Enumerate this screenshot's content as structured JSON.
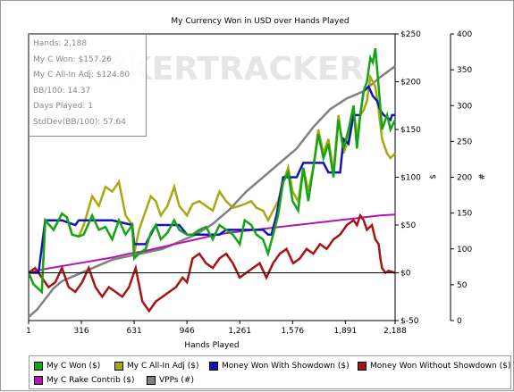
{
  "colors": {
    "my_c_won": "#14a514",
    "all_in_adj": "#a8a812",
    "showdown": "#1414b4",
    "non_showdown": "#a81414",
    "rake": "#b414b4",
    "vpps": "#808080",
    "watermark": "#e6e6e6"
  },
  "watermark_text": "POKERTRACKER",
  "stats": [
    "Hands: 2,188",
    "My C Won: $157.26",
    "My C All-In Adj: $124.80",
    "BB/100: 14.37",
    "Days Played: 1",
    "StdDev(BB/100): 57.64"
  ],
  "legend": {
    "my_c_won": "My C Won ($)",
    "all_in_adj": "My C All-In Adj ($)",
    "showdown": "Money Won With Showdown ($)",
    "non_showdown": "Money Won Without Showdown ($)",
    "rake": "My C Rake Contrib ($)",
    "vpps": "VPPs (#)"
  },
  "chart_data": {
    "type": "line",
    "title": "My Currency Won in USD over Hands Played",
    "xlabel": "Hands Played",
    "ylabel_left": "$",
    "ylabel_right": "#",
    "xlim": [
      1,
      2188
    ],
    "ylim_left": [
      -50,
      250
    ],
    "ylim_right": [
      0,
      400
    ],
    "x_ticks": [
      1,
      316,
      631,
      946,
      1261,
      1576,
      1891,
      2188
    ],
    "x_tick_labels": [
      "1",
      "316",
      "631",
      "946",
      "1,261",
      "1,576",
      "1,891",
      "2,188"
    ],
    "y_left_ticks": [
      -50,
      0,
      50,
      100,
      150,
      200,
      250
    ],
    "y_left_tick_labels": [
      "$-50",
      "$0",
      "$50",
      "$100",
      "$150",
      "$200",
      "$250"
    ],
    "y_right_ticks": [
      0,
      50,
      100,
      150,
      200,
      250,
      300,
      350,
      400
    ],
    "y_right_tick_labels": [
      "0",
      "50",
      "100",
      "150",
      "200",
      "250",
      "300",
      "350",
      "400"
    ],
    "grid": false,
    "legend_position": "bottom",
    "series": [
      {
        "name": "My C Won ($)",
        "key": "my_c_won",
        "axis": "left",
        "points": [
          [
            1,
            0
          ],
          [
            30,
            -12
          ],
          [
            80,
            -20
          ],
          [
            100,
            55
          ],
          [
            150,
            45
          ],
          [
            200,
            62
          ],
          [
            230,
            58
          ],
          [
            260,
            40
          ],
          [
            300,
            38
          ],
          [
            330,
            40
          ],
          [
            380,
            60
          ],
          [
            420,
            45
          ],
          [
            460,
            48
          ],
          [
            500,
            35
          ],
          [
            540,
            55
          ],
          [
            580,
            40
          ],
          [
            620,
            50
          ],
          [
            631,
            15
          ],
          [
            660,
            20
          ],
          [
            700,
            25
          ],
          [
            730,
            42
          ],
          [
            760,
            50
          ],
          [
            790,
            35
          ],
          [
            830,
            42
          ],
          [
            870,
            55
          ],
          [
            900,
            45
          ],
          [
            946,
            40
          ],
          [
            980,
            40
          ],
          [
            1020,
            45
          ],
          [
            1060,
            48
          ],
          [
            1100,
            35
          ],
          [
            1140,
            50
          ],
          [
            1180,
            45
          ],
          [
            1220,
            40
          ],
          [
            1261,
            30
          ],
          [
            1290,
            55
          ],
          [
            1330,
            50
          ],
          [
            1360,
            40
          ],
          [
            1400,
            35
          ],
          [
            1430,
            20
          ],
          [
            1460,
            40
          ],
          [
            1490,
            60
          ],
          [
            1520,
            95
          ],
          [
            1550,
            105
          ],
          [
            1576,
            75
          ],
          [
            1610,
            65
          ],
          [
            1640,
            110
          ],
          [
            1670,
            75
          ],
          [
            1700,
            110
          ],
          [
            1730,
            145
          ],
          [
            1760,
            120
          ],
          [
            1790,
            135
          ],
          [
            1820,
            100
          ],
          [
            1850,
            160
          ],
          [
            1880,
            130
          ],
          [
            1910,
            150
          ],
          [
            1940,
            175
          ],
          [
            1960,
            130
          ],
          [
            1980,
            165
          ],
          [
            2000,
            190
          ],
          [
            2020,
            200
          ],
          [
            2040,
            225
          ],
          [
            2055,
            220
          ],
          [
            2070,
            235
          ],
          [
            2090,
            195
          ],
          [
            2110,
            150
          ],
          [
            2140,
            165
          ],
          [
            2160,
            150
          ],
          [
            2188,
            160
          ]
        ]
      },
      {
        "name": "My C All-In Adj ($)",
        "key": "all_in_adj",
        "axis": "left",
        "points": [
          [
            1,
            0
          ],
          [
            30,
            -12
          ],
          [
            80,
            -20
          ],
          [
            100,
            55
          ],
          [
            150,
            45
          ],
          [
            200,
            62
          ],
          [
            230,
            58
          ],
          [
            260,
            40
          ],
          [
            300,
            38
          ],
          [
            330,
            50
          ],
          [
            380,
            80
          ],
          [
            420,
            70
          ],
          [
            460,
            90
          ],
          [
            500,
            85
          ],
          [
            540,
            95
          ],
          [
            580,
            60
          ],
          [
            620,
            50
          ],
          [
            631,
            20
          ],
          [
            660,
            45
          ],
          [
            700,
            65
          ],
          [
            730,
            80
          ],
          [
            760,
            75
          ],
          [
            790,
            60
          ],
          [
            830,
            70
          ],
          [
            870,
            90
          ],
          [
            900,
            70
          ],
          [
            946,
            60
          ],
          [
            980,
            72
          ],
          [
            1020,
            75
          ],
          [
            1060,
            70
          ],
          [
            1100,
            65
          ],
          [
            1140,
            85
          ],
          [
            1180,
            75
          ],
          [
            1220,
            68
          ],
          [
            1261,
            70
          ],
          [
            1290,
            72
          ],
          [
            1330,
            75
          ],
          [
            1360,
            68
          ],
          [
            1400,
            65
          ],
          [
            1430,
            55
          ],
          [
            1460,
            65
          ],
          [
            1490,
            75
          ],
          [
            1520,
            95
          ],
          [
            1550,
            110
          ],
          [
            1576,
            85
          ],
          [
            1610,
            75
          ],
          [
            1640,
            110
          ],
          [
            1670,
            85
          ],
          [
            1700,
            110
          ],
          [
            1730,
            150
          ],
          [
            1760,
            125
          ],
          [
            1790,
            140
          ],
          [
            1820,
            105
          ],
          [
            1850,
            165
          ],
          [
            1880,
            125
          ],
          [
            1910,
            140
          ],
          [
            1940,
            175
          ],
          [
            1960,
            140
          ],
          [
            1980,
            165
          ],
          [
            2000,
            170
          ],
          [
            2020,
            180
          ],
          [
            2040,
            205
          ],
          [
            2055,
            200
          ],
          [
            2070,
            195
          ],
          [
            2090,
            170
          ],
          [
            2110,
            140
          ],
          [
            2140,
            125
          ],
          [
            2160,
            120
          ],
          [
            2188,
            125
          ]
        ]
      },
      {
        "name": "Money Won With Showdown ($)",
        "key": "showdown",
        "axis": "left",
        "points": [
          [
            1,
            0
          ],
          [
            60,
            0
          ],
          [
            100,
            55
          ],
          [
            200,
            55
          ],
          [
            280,
            50
          ],
          [
            300,
            55
          ],
          [
            500,
            55
          ],
          [
            620,
            50
          ],
          [
            631,
            30
          ],
          [
            700,
            30
          ],
          [
            760,
            50
          ],
          [
            900,
            50
          ],
          [
            946,
            40
          ],
          [
            1140,
            40
          ],
          [
            1180,
            45
          ],
          [
            1400,
            45
          ],
          [
            1430,
            40
          ],
          [
            1450,
            40
          ],
          [
            1480,
            60
          ],
          [
            1520,
            100
          ],
          [
            1600,
            100
          ],
          [
            1640,
            115
          ],
          [
            1760,
            115
          ],
          [
            1790,
            105
          ],
          [
            1860,
            105
          ],
          [
            1880,
            140
          ],
          [
            1910,
            135
          ],
          [
            1940,
            165
          ],
          [
            1980,
            165
          ],
          [
            2000,
            190
          ],
          [
            2030,
            195
          ],
          [
            2055,
            185
          ],
          [
            2080,
            180
          ],
          [
            2100,
            170
          ],
          [
            2120,
            165
          ],
          [
            2160,
            160
          ],
          [
            2170,
            165
          ],
          [
            2188,
            165
          ]
        ]
      },
      {
        "name": "Money Won Without Showdown ($)",
        "key": "non_showdown",
        "axis": "left",
        "points": [
          [
            1,
            0
          ],
          [
            40,
            5
          ],
          [
            80,
            -5
          ],
          [
            120,
            -15
          ],
          [
            160,
            -10
          ],
          [
            200,
            5
          ],
          [
            240,
            -15
          ],
          [
            280,
            -20
          ],
          [
            320,
            -10
          ],
          [
            360,
            5
          ],
          [
            400,
            -15
          ],
          [
            440,
            -25
          ],
          [
            480,
            -15
          ],
          [
            520,
            -20
          ],
          [
            560,
            -25
          ],
          [
            600,
            -15
          ],
          [
            640,
            5
          ],
          [
            680,
            -30
          ],
          [
            720,
            -40
          ],
          [
            760,
            -30
          ],
          [
            800,
            -25
          ],
          [
            840,
            -20
          ],
          [
            880,
            -15
          ],
          [
            920,
            -5
          ],
          [
            946,
            -10
          ],
          [
            980,
            15
          ],
          [
            1020,
            20
          ],
          [
            1060,
            10
          ],
          [
            1100,
            5
          ],
          [
            1140,
            15
          ],
          [
            1180,
            20
          ],
          [
            1220,
            10
          ],
          [
            1261,
            -5
          ],
          [
            1300,
            0
          ],
          [
            1340,
            5
          ],
          [
            1380,
            10
          ],
          [
            1420,
            -5
          ],
          [
            1460,
            10
          ],
          [
            1500,
            20
          ],
          [
            1540,
            25
          ],
          [
            1580,
            10
          ],
          [
            1620,
            15
          ],
          [
            1660,
            25
          ],
          [
            1700,
            20
          ],
          [
            1740,
            30
          ],
          [
            1780,
            25
          ],
          [
            1820,
            35
          ],
          [
            1860,
            40
          ],
          [
            1900,
            50
          ],
          [
            1940,
            55
          ],
          [
            1960,
            50
          ],
          [
            1980,
            60
          ],
          [
            2000,
            55
          ],
          [
            2020,
            45
          ],
          [
            2050,
            50
          ],
          [
            2070,
            35
          ],
          [
            2090,
            30
          ],
          [
            2100,
            15
          ],
          [
            2110,
            5
          ],
          [
            2130,
            0
          ],
          [
            2150,
            2
          ],
          [
            2188,
            0
          ]
        ]
      },
      {
        "name": "My C Rake Contrib ($)",
        "key": "rake",
        "axis": "left",
        "points": [
          [
            1,
            0
          ],
          [
            100,
            4
          ],
          [
            200,
            7
          ],
          [
            300,
            10
          ],
          [
            400,
            13
          ],
          [
            500,
            16
          ],
          [
            600,
            20
          ],
          [
            700,
            23
          ],
          [
            800,
            27
          ],
          [
            900,
            31
          ],
          [
            1000,
            35
          ],
          [
            1100,
            39
          ],
          [
            1200,
            42
          ],
          [
            1300,
            44
          ],
          [
            1400,
            46
          ],
          [
            1500,
            48
          ],
          [
            1600,
            50
          ],
          [
            1700,
            52
          ],
          [
            1800,
            54
          ],
          [
            1900,
            56
          ],
          [
            2000,
            58
          ],
          [
            2100,
            60
          ],
          [
            2188,
            61
          ]
        ]
      },
      {
        "name": "VPPs (#)",
        "key": "vpps",
        "axis": "right",
        "points": [
          [
            1,
            5
          ],
          [
            50,
            15
          ],
          [
            100,
            30
          ],
          [
            150,
            45
          ],
          [
            200,
            55
          ],
          [
            300,
            65
          ],
          [
            400,
            75
          ],
          [
            500,
            85
          ],
          [
            600,
            90
          ],
          [
            700,
            95
          ],
          [
            800,
            100
          ],
          [
            900,
            110
          ],
          [
            1000,
            120
          ],
          [
            1100,
            135
          ],
          [
            1200,
            155
          ],
          [
            1300,
            180
          ],
          [
            1400,
            200
          ],
          [
            1500,
            220
          ],
          [
            1600,
            240
          ],
          [
            1700,
            270
          ],
          [
            1800,
            295
          ],
          [
            1900,
            310
          ],
          [
            2000,
            320
          ],
          [
            2100,
            340
          ],
          [
            2188,
            355
          ]
        ]
      }
    ]
  }
}
